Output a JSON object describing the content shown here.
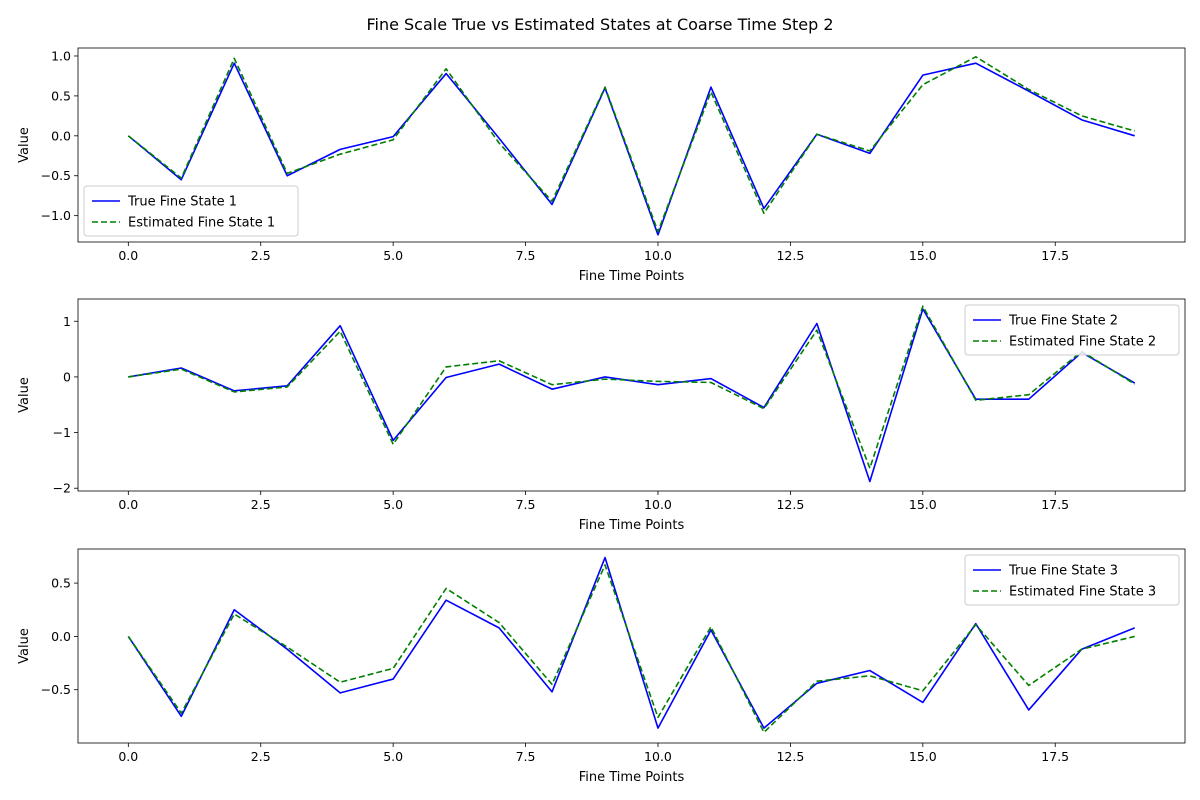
{
  "figure_title": "Fine Scale True vs Estimated States at Coarse Time Step 2",
  "colors": {
    "true_series": "#0000ff",
    "estimated_series": "#008000"
  },
  "chart_data": [
    {
      "type": "line",
      "xlabel": "Fine Time Points",
      "ylabel": "Value",
      "xlim": [
        -0.95,
        19.95
      ],
      "ylim": [
        -1.33,
        1.1
      ],
      "xticks": [
        0.0,
        2.5,
        5.0,
        7.5,
        10.0,
        12.5,
        15.0,
        17.5
      ],
      "xtick_labels": [
        "0.0",
        "2.5",
        "5.0",
        "7.5",
        "10.0",
        "12.5",
        "15.0",
        "17.5"
      ],
      "yticks": [
        -1.0,
        -0.5,
        0.0,
        0.5,
        1.0
      ],
      "ytick_labels": [
        "−1.0",
        "−0.5",
        "0.0",
        "0.5",
        "1.0"
      ],
      "legend_position": "lower-left",
      "x": [
        0,
        1,
        2,
        3,
        4,
        5,
        6,
        7,
        8,
        9,
        10,
        11,
        12,
        13,
        14,
        15,
        16,
        17,
        18,
        19
      ],
      "series": [
        {
          "name": "True Fine State 1",
          "style": "solid",
          "color": "#0000ff",
          "values": [
            0.0,
            -0.55,
            0.91,
            -0.5,
            -0.17,
            -0.01,
            0.78,
            -0.03,
            -0.86,
            0.6,
            -1.24,
            0.61,
            -0.91,
            0.02,
            -0.22,
            0.76,
            0.91,
            0.56,
            0.2,
            0.0
          ]
        },
        {
          "name": "Estimated Fine State 1",
          "style": "dashed",
          "color": "#008000",
          "values": [
            0.0,
            -0.53,
            0.97,
            -0.47,
            -0.23,
            -0.05,
            0.84,
            -0.09,
            -0.82,
            0.61,
            -1.2,
            0.55,
            -0.97,
            0.02,
            -0.19,
            0.64,
            0.99,
            0.58,
            0.25,
            0.06
          ]
        }
      ]
    },
    {
      "type": "line",
      "xlabel": "Fine Time Points",
      "ylabel": "Value",
      "xlim": [
        -0.95,
        19.95
      ],
      "ylim": [
        -2.05,
        1.4
      ],
      "xticks": [
        0.0,
        2.5,
        5.0,
        7.5,
        10.0,
        12.5,
        15.0,
        17.5
      ],
      "xtick_labels": [
        "0.0",
        "2.5",
        "5.0",
        "7.5",
        "10.0",
        "12.5",
        "15.0",
        "17.5"
      ],
      "yticks": [
        -2,
        -1,
        0,
        1
      ],
      "ytick_labels": [
        "−2",
        "−1",
        "0",
        "1"
      ],
      "legend_position": "top-right",
      "x": [
        0,
        1,
        2,
        3,
        4,
        5,
        6,
        7,
        8,
        9,
        10,
        11,
        12,
        13,
        14,
        15,
        16,
        17,
        18,
        19
      ],
      "series": [
        {
          "name": "True Fine State 2",
          "style": "solid",
          "color": "#0000ff",
          "values": [
            0.0,
            0.16,
            -0.25,
            -0.16,
            0.92,
            -1.14,
            -0.01,
            0.23,
            -0.22,
            0.0,
            -0.14,
            -0.03,
            -0.55,
            0.96,
            -1.88,
            1.22,
            -0.4,
            -0.4,
            0.44,
            -0.11
          ]
        },
        {
          "name": "Estimated Fine State 2",
          "style": "dashed",
          "color": "#008000",
          "values": [
            0.0,
            0.14,
            -0.27,
            -0.18,
            0.82,
            -1.21,
            0.18,
            0.29,
            -0.14,
            -0.04,
            -0.08,
            -0.1,
            -0.57,
            0.84,
            -1.64,
            1.27,
            -0.42,
            -0.32,
            0.46,
            -0.13
          ]
        }
      ]
    },
    {
      "type": "line",
      "xlabel": "Fine Time Points",
      "ylabel": "Value",
      "xlim": [
        -0.95,
        19.95
      ],
      "ylim": [
        -1.0,
        0.82
      ],
      "xticks": [
        0.0,
        2.5,
        5.0,
        7.5,
        10.0,
        12.5,
        15.0,
        17.5
      ],
      "xtick_labels": [
        "0.0",
        "2.5",
        "5.0",
        "7.5",
        "10.0",
        "12.5",
        "15.0",
        "17.5"
      ],
      "yticks": [
        -0.5,
        0.0,
        0.5
      ],
      "ytick_labels": [
        "−0.5",
        "0.0",
        "0.5"
      ],
      "legend_position": "top-right",
      "x": [
        0,
        1,
        2,
        3,
        4,
        5,
        6,
        7,
        8,
        9,
        10,
        11,
        12,
        13,
        14,
        15,
        16,
        17,
        18,
        19
      ],
      "series": [
        {
          "name": "True Fine State 3",
          "style": "solid",
          "color": "#0000ff",
          "values": [
            0.0,
            -0.75,
            0.25,
            -0.12,
            -0.53,
            -0.4,
            0.34,
            0.08,
            -0.52,
            0.74,
            -0.86,
            0.06,
            -0.86,
            -0.44,
            -0.32,
            -0.62,
            0.12,
            -0.69,
            -0.12,
            0.08
          ]
        },
        {
          "name": "Estimated Fine State 3",
          "style": "dashed",
          "color": "#008000",
          "values": [
            0.0,
            -0.72,
            0.21,
            -0.1,
            -0.43,
            -0.3,
            0.45,
            0.13,
            -0.45,
            0.67,
            -0.76,
            0.09,
            -0.9,
            -0.42,
            -0.37,
            -0.51,
            0.11,
            -0.46,
            -0.12,
            0.0
          ]
        }
      ]
    }
  ]
}
